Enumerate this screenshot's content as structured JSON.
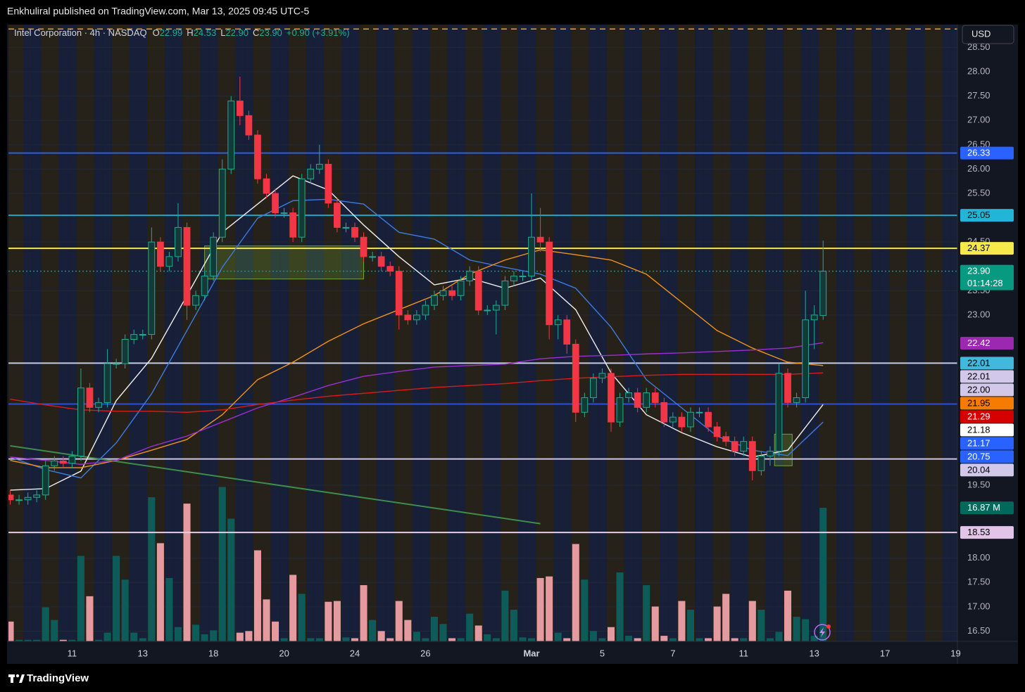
{
  "chart_data": {
    "type": "candlestick",
    "publisher": "Enkhuliral published on TradingView.com, Mar 13, 2025 09:45 UTC-5",
    "title": "Intel Corporation · 4h · NASDAQ",
    "legend_ohlc": [
      {
        "key": "O",
        "value": 22.99
      },
      {
        "key": "H",
        "value": 24.53
      },
      {
        "key": "L",
        "value": 22.9,
        "label": "22.90"
      },
      {
        "key": "C",
        "value": 23.9,
        "label": "23.90"
      }
    ],
    "change": "+0.90 (+3.91%)",
    "currency": "USD",
    "footer": "TradingView",
    "x": [
      0,
      1,
      2,
      3,
      4,
      5,
      6,
      7,
      8,
      9,
      10,
      11,
      12,
      13,
      14,
      15,
      16,
      17,
      18,
      19,
      20,
      21,
      22,
      23,
      24,
      25,
      26,
      27,
      28,
      29,
      30,
      31,
      32,
      33,
      34,
      35,
      36,
      37,
      38,
      39,
      40,
      41,
      42,
      43,
      44,
      45,
      46,
      47,
      48,
      49,
      50,
      51,
      52,
      53,
      54,
      55,
      56,
      57,
      58,
      59,
      60,
      61,
      62,
      63,
      64,
      65,
      66,
      67,
      68,
      69,
      70,
      71,
      72,
      73,
      74,
      75,
      76,
      77,
      78,
      79,
      80,
      81,
      82,
      83,
      84,
      85,
      86,
      87,
      88,
      89,
      90,
      91,
      92
    ],
    "open": [
      19.3,
      19.2,
      19.2,
      19.25,
      19.3,
      19.9,
      20.0,
      19.95,
      20.1,
      21.5,
      21.1,
      21.2,
      22.0,
      22.0,
      22.5,
      22.6,
      22.6,
      24.5,
      24.0,
      24.2,
      24.8,
      23.2,
      23.4,
      23.8,
      24.6,
      26.0,
      27.4,
      27.1,
      26.7,
      25.8,
      25.5,
      25.1,
      25.1,
      24.6,
      25.8,
      26.0,
      26.1,
      25.3,
      24.8,
      24.8,
      24.6,
      24.2,
      24.2,
      24.0,
      23.9,
      23.0,
      22.9,
      23.0,
      23.2,
      23.4,
      23.5,
      23.4,
      23.7,
      23.9,
      23.1,
      23.1,
      23.2,
      23.7,
      23.8,
      23.8,
      24.6,
      24.5,
      22.8,
      22.9,
      22.4,
      21.0,
      21.3,
      21.7,
      21.8,
      20.8,
      21.3,
      21.4,
      21.1,
      21.4,
      21.2,
      20.8,
      20.9,
      20.7,
      21.0,
      21.0,
      20.7,
      20.5,
      20.4,
      20.2,
      20.4,
      19.8,
      20.1,
      20.2,
      21.8,
      21.2,
      21.3,
      22.9,
      22.99
    ],
    "high": [
      19.4,
      19.3,
      19.35,
      19.4,
      20.0,
      20.1,
      20.1,
      20.2,
      21.9,
      21.6,
      21.3,
      22.3,
      22.1,
      22.6,
      22.7,
      22.7,
      24.8,
      24.6,
      24.3,
      25.3,
      24.9,
      23.5,
      23.9,
      24.7,
      26.2,
      27.5,
      27.9,
      27.2,
      26.8,
      25.9,
      25.6,
      25.2,
      25.2,
      25.9,
      26.1,
      26.5,
      26.2,
      25.4,
      24.9,
      24.9,
      24.7,
      24.3,
      24.3,
      24.1,
      24.0,
      23.1,
      23.1,
      23.3,
      23.5,
      23.6,
      23.6,
      23.8,
      24.0,
      24.0,
      23.2,
      23.3,
      23.8,
      23.9,
      23.9,
      25.5,
      25.2,
      24.6,
      23.0,
      23.0,
      22.5,
      21.4,
      21.8,
      21.9,
      21.9,
      21.4,
      21.5,
      21.5,
      21.5,
      21.5,
      21.3,
      21.0,
      21.0,
      21.1,
      21.1,
      21.1,
      20.8,
      20.6,
      20.5,
      20.5,
      20.5,
      20.2,
      20.3,
      22.0,
      21.9,
      21.4,
      23.5,
      23.2,
      24.53
    ],
    "low": [
      19.1,
      19.1,
      19.1,
      19.15,
      19.2,
      19.8,
      19.85,
      19.85,
      20.0,
      21.0,
      21.0,
      21.1,
      21.9,
      21.9,
      22.4,
      22.5,
      22.5,
      23.9,
      23.9,
      24.1,
      22.9,
      23.1,
      23.3,
      23.7,
      24.5,
      25.9,
      26.9,
      26.6,
      25.7,
      25.4,
      25.0,
      25.0,
      24.5,
      24.5,
      25.7,
      25.9,
      25.2,
      24.7,
      24.7,
      24.5,
      24.1,
      24.1,
      23.9,
      23.8,
      22.7,
      22.8,
      22.8,
      22.9,
      23.1,
      23.3,
      23.3,
      23.3,
      23.6,
      23.0,
      23.0,
      22.6,
      23.1,
      23.6,
      23.7,
      23.7,
      24.3,
      22.5,
      22.5,
      22.2,
      20.8,
      20.9,
      21.2,
      21.6,
      20.6,
      20.7,
      21.2,
      21.0,
      21.0,
      21.1,
      20.7,
      20.7,
      20.6,
      20.6,
      20.9,
      20.6,
      20.4,
      20.3,
      20.1,
      20.1,
      19.6,
      19.7,
      19.9,
      20.1,
      21.1,
      21.1,
      21.2,
      22.3,
      22.9
    ],
    "close": [
      19.2,
      19.2,
      19.25,
      19.3,
      19.9,
      20.0,
      19.95,
      20.1,
      21.5,
      21.1,
      21.2,
      22.0,
      22.0,
      22.5,
      22.6,
      22.6,
      24.5,
      24.0,
      24.2,
      24.8,
      23.2,
      23.4,
      23.8,
      24.6,
      26.0,
      27.4,
      27.1,
      26.7,
      25.8,
      25.5,
      25.1,
      25.1,
      24.6,
      25.8,
      26.0,
      26.1,
      25.3,
      24.8,
      24.8,
      24.6,
      24.2,
      24.2,
      24.0,
      23.9,
      23.0,
      22.9,
      23.0,
      23.2,
      23.4,
      23.5,
      23.4,
      23.7,
      23.9,
      23.1,
      23.1,
      23.2,
      23.7,
      23.8,
      23.8,
      24.6,
      24.5,
      22.8,
      22.9,
      22.4,
      21.0,
      21.3,
      21.7,
      21.8,
      20.8,
      21.3,
      21.4,
      21.1,
      21.4,
      21.2,
      20.8,
      20.9,
      20.7,
      21.0,
      21.0,
      20.7,
      20.5,
      20.4,
      20.2,
      20.4,
      19.8,
      20.1,
      20.2,
      21.8,
      21.2,
      21.3,
      22.9,
      23.0,
      23.9
    ],
    "volume": [
      2.5,
      0.2,
      0.2,
      0.2,
      4.3,
      2.7,
      0.2,
      0.2,
      10.8,
      5.7,
      0.2,
      1.1,
      10.8,
      7.8,
      1.1,
      0.4,
      18.2,
      12.4,
      8.0,
      1.8,
      17.4,
      2.1,
      0.9,
      1.4,
      19.5,
      15.5,
      1.1,
      1.3,
      11.5,
      5.3,
      2.5,
      0.4,
      8.4,
      6.0,
      0.4,
      0.4,
      5.0,
      5.1,
      0.5,
      0.4,
      7.1,
      2.7,
      1.3,
      0.4,
      5.1,
      2.7,
      1.2,
      0.4,
      3.1,
      2.2,
      0.4,
      0.4,
      3.5,
      2.0,
      0.9,
      0.4,
      6.4,
      4.0,
      0.5,
      0.4,
      8.0,
      8.2,
      1.1,
      0.4,
      12.3,
      7.8,
      1.3,
      0.4,
      1.8,
      8.7,
      0.7,
      0.4,
      7.1,
      4.4,
      0.7,
      0.4,
      5.1,
      4.0,
      0.4,
      0.4,
      4.4,
      6.0,
      0.4,
      0.4,
      5.1,
      4.0,
      0.4,
      1.2,
      6.4,
      3.1,
      2.8,
      0.7,
      16.87
    ],
    "up_color": "#22ab94",
    "down_color": "#f23645",
    "volume_up_color": "#0d5c5a",
    "volume_down_color": "#e49a9e",
    "xlim": [
      -0.2,
      107.2
    ],
    "ylim": [
      16.29,
      28.97
    ],
    "vlim": [
      0,
      77.9
    ],
    "grid": true,
    "xticks": [
      {
        "value": 7,
        "label": "11"
      },
      {
        "value": 15,
        "label": "13"
      },
      {
        "value": 23,
        "label": "18"
      },
      {
        "value": 31,
        "label": "20"
      },
      {
        "value": 39,
        "label": "24"
      },
      {
        "value": 47,
        "label": "26"
      },
      {
        "value": 59,
        "label": "Mar"
      },
      {
        "value": 67,
        "label": "5"
      },
      {
        "value": 75,
        "label": "7"
      },
      {
        "value": 83,
        "label": "11"
      },
      {
        "value": 91,
        "label": "13"
      },
      {
        "value": 99,
        "label": "17"
      },
      {
        "value": 107,
        "label": "19"
      }
    ],
    "yticks": [
      {
        "value": 28.5,
        "label": "28.50"
      },
      {
        "value": 28,
        "label": "28.00"
      },
      {
        "value": 27.5,
        "label": "27.50"
      },
      {
        "value": 27,
        "label": "27.00"
      },
      {
        "value": 26.5,
        "label": "26.50"
      },
      {
        "value": 26,
        "label": "26.00"
      },
      {
        "value": 25.5,
        "label": "25.50"
      },
      {
        "value": 24.5,
        "label": "24.50"
      },
      {
        "value": 23.5,
        "label": "23.50"
      },
      {
        "value": 23,
        "label": "23.00"
      },
      {
        "value": 19.5,
        "label": "19.50"
      },
      {
        "value": 18,
        "label": "18.00"
      },
      {
        "value": 17.5,
        "label": "17.50"
      },
      {
        "value": 17,
        "label": "17.00"
      },
      {
        "value": 16.5,
        "label": "16.50"
      }
    ],
    "overlay_x": [
      0,
      4,
      8,
      12,
      16,
      20,
      24,
      28,
      32,
      36,
      40,
      44,
      48,
      52,
      56,
      60,
      64,
      68,
      72,
      76,
      80,
      84,
      88,
      92
    ],
    "overlays": [
      {
        "color": "#f0f0f0",
        "values": [
          19.4,
          19.43,
          19.79,
          21.24,
          22.11,
          23.4,
          24.7,
          25.28,
          25.86,
          25.57,
          24.85,
          24.2,
          23.62,
          23.76,
          23.55,
          23.76,
          23.11,
          21.81,
          20.95,
          20.58,
          20.29,
          20.08,
          20.22,
          21.16
        ]
      },
      {
        "color": "#3d7be0",
        "values": [
          20.08,
          19.82,
          19.65,
          20.37,
          21.38,
          22.68,
          23.98,
          24.99,
          25.35,
          25.38,
          25.28,
          24.7,
          24.56,
          24.13,
          23.98,
          23.84,
          23.55,
          22.75,
          21.67,
          21.09,
          20.51,
          20.22,
          20.11,
          20.8
        ]
      },
      {
        "color": "#f0931e",
        "values": [
          20.01,
          19.86,
          19.86,
          20.01,
          20.22,
          20.44,
          20.95,
          21.67,
          22.03,
          22.46,
          22.82,
          23.11,
          23.4,
          23.84,
          24.13,
          24.34,
          24.24,
          24.13,
          23.84,
          23.26,
          22.68,
          22.32,
          22.03,
          21.96
        ]
      },
      {
        "color": "#9c2fd0",
        "values": [
          20.08,
          20.01,
          19.93,
          20.01,
          20.3,
          20.51,
          20.8,
          21.09,
          21.31,
          21.55,
          21.74,
          21.84,
          21.93,
          21.96,
          21.99,
          22.1,
          22.15,
          22.17,
          22.2,
          22.22,
          22.25,
          22.28,
          22.32,
          22.43
        ]
      },
      {
        "color": "#d81b1b",
        "values": [
          21.27,
          21.15,
          21.05,
          21.02,
          21.02,
          21.0,
          21.05,
          21.16,
          21.25,
          21.33,
          21.39,
          21.45,
          21.51,
          21.55,
          21.59,
          21.65,
          21.7,
          21.73,
          21.76,
          21.78,
          21.78,
          21.78,
          21.78,
          21.81
        ]
      }
    ],
    "trendline": {
      "color": "#3e8e4a",
      "x": [
        0,
        60
      ],
      "values": [
        20.31,
        18.71
      ]
    },
    "zones": [
      {
        "color": "#7fbf3f",
        "x": [
          22,
          40
        ],
        "values": [
          23.74,
          24.42
        ]
      },
      {
        "color": "#7fbf3f",
        "x": [
          86.5,
          88.5
        ],
        "values": [
          19.9,
          20.55
        ]
      }
    ],
    "levels": [
      {
        "value": 28.88,
        "color": "#f59a23",
        "style": "dashed"
      },
      {
        "value": 26.33,
        "color": "#2f5de0",
        "style": "solid"
      },
      {
        "value": 25.05,
        "color": "#1fa5c9",
        "style": "solid"
      },
      {
        "value": 24.37,
        "color": "#f5ea4a",
        "style": "solid"
      },
      {
        "value": 23.9,
        "color": "#089981",
        "style": "dotted"
      },
      {
        "value": 22.01,
        "color": "#c5cbe6",
        "style": "solid"
      },
      {
        "value": 21.17,
        "color": "#2f4fd0",
        "style": "solid"
      },
      {
        "value": 20.04,
        "color": "#cfc6e6",
        "style": "solid"
      },
      {
        "value": 18.53,
        "color": "#e6cde9",
        "style": "solid"
      }
    ],
    "price_labels": [
      {
        "value": 26.33,
        "label": "26.33",
        "color": "#2962ff",
        "text_color": "#ffffff"
      },
      {
        "value": 25.05,
        "label": "25.05",
        "color": "#22b5d8",
        "text_color": "#000000"
      },
      {
        "value": 24.37,
        "label": "24.37",
        "color": "#f5ea4a",
        "text_color": "#000000"
      },
      {
        "value": 23.9,
        "label": "23.90",
        "sub": "01:14:28",
        "color": "#089981",
        "text_color": "#ffffff"
      },
      {
        "value": 22.42,
        "label": "22.42",
        "color": "#9c27b0",
        "text_color": "#ffffff"
      },
      {
        "value": 22.01,
        "label": "22.01",
        "color": "#43b8dd",
        "text_color": "#000000"
      },
      {
        "value": 22.01,
        "label": "22.01",
        "color": "#d1c8ea",
        "text_color": "#000000"
      },
      {
        "value": 22.0,
        "label": "22.00",
        "color": "#d1c8ea",
        "text_color": "#000000"
      },
      {
        "value": 21.95,
        "label": "21.95",
        "color": "#f57c00",
        "text_color": "#000000"
      },
      {
        "value": 21.29,
        "label": "21.29",
        "color": "#d50000",
        "text_color": "#ffffff"
      },
      {
        "value": 21.18,
        "label": "21.18",
        "color": "#ffffff",
        "text_color": "#000000"
      },
      {
        "value": 21.17,
        "label": "21.17",
        "color": "#2962ff",
        "text_color": "#ffffff"
      },
      {
        "value": 20.75,
        "label": "20.75",
        "color": "#2962ff",
        "text_color": "#ffffff"
      },
      {
        "value": 20.04,
        "label": "20.04",
        "color": "#d1c8ea",
        "text_color": "#000000"
      },
      {
        "value": 18.53,
        "label": "18.53",
        "color": "#e1c4e8",
        "text_color": "#000000"
      }
    ],
    "volume_label": {
      "value": 16.87,
      "label": "16.87 M",
      "color": "#00695c",
      "text_color": "#ffffff"
    }
  }
}
